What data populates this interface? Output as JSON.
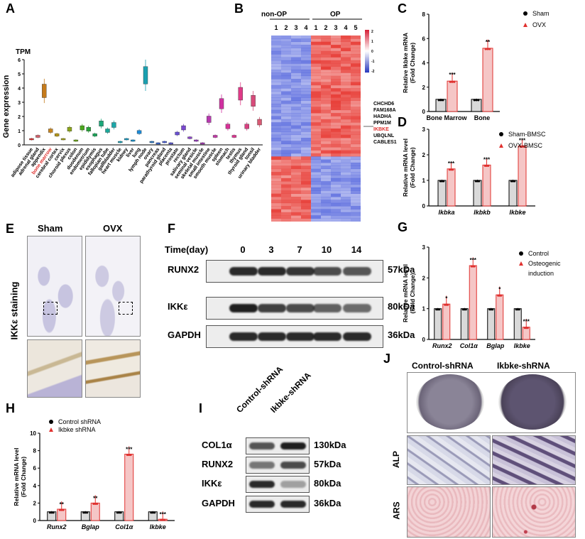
{
  "colors": {
    "red": "#e0312f",
    "pink_bar": "#f5c6c6",
    "gray_bar": "#d9d9d9",
    "heat_red": "#e8413b",
    "heat_blue": "#3b4fd8",
    "brown_stain": "#9b7a4a",
    "purple_stain": "#6a5d9a"
  },
  "panels": {
    "A": {
      "label": "A",
      "tpm_label": "TPM",
      "ylabel": "Gene expression",
      "yticks": [
        "0",
        "1",
        "2",
        "3",
        "4",
        "5",
        "6"
      ],
      "highlight": "bone marrow",
      "tissues": [
        "adipose tissue",
        "adrenal gland",
        "appendix",
        "bone marrow",
        "cerebral cortex",
        "cervix",
        "choroid plexus",
        "colon",
        "duodenum",
        "endometrium",
        "epididymis",
        "esophagus",
        "fallopian tube",
        "gallbladder",
        "heart muscle",
        "kidney",
        "liver",
        "lung",
        "lymph node",
        "ovary",
        "pancreas",
        "parathyroid gland",
        "placenta",
        "prostate",
        "rectum",
        "salivary gland",
        "seminal vesicle",
        "skeletal muscle",
        "small intestine",
        "smooth muscle",
        "spleen",
        "stomach",
        "testis",
        "thymus",
        "thyroid gland",
        "tonsil",
        "urinary bladder"
      ]
    },
    "B": {
      "label": "B",
      "group1": "non-OP",
      "group2": "OP",
      "cols1": [
        "1",
        "2",
        "3",
        "4"
      ],
      "cols2": [
        "1",
        "2",
        "3",
        "4",
        "5"
      ],
      "scale": [
        "2",
        "1",
        "0",
        "-1",
        "-2"
      ],
      "genes": [
        "CHCHD6",
        "FAM168A",
        "HADHA",
        "PPM1M",
        "IKBKE",
        "UBQLNL",
        "CABLES1"
      ],
      "highlight_gene": "IKBKE"
    },
    "C": {
      "label": "C",
      "ylabel": "Relative Ikbke mRNA\n(Fold Change)",
      "ylabel_lines": [
        "Relative ",
        "Ikbke",
        " mRNA",
        "(Fold Change)"
      ],
      "legend": [
        "Sham",
        "OVX"
      ],
      "chart_data": {
        "type": "bar",
        "categories": [
          "Bone Marrow",
          "Bone"
        ],
        "series": [
          {
            "name": "Sham",
            "values": [
              1.0,
              1.0
            ]
          },
          {
            "name": "OVX",
            "values": [
              2.5,
              5.2
            ]
          }
        ],
        "ylim": [
          0,
          8
        ],
        "yticks": [
          0,
          2,
          4,
          6,
          8
        ],
        "significance": [
          "***",
          "**"
        ]
      }
    },
    "D": {
      "label": "D",
      "ylabel_lines": [
        "Relative mRNA level",
        "(Fold Change)"
      ],
      "legend": [
        "Sham-BMSC",
        "OVX-BMSC"
      ],
      "chart_data": {
        "type": "bar",
        "categories": [
          "Ikbka",
          "Ikbkb",
          "Ikbke"
        ],
        "series": [
          {
            "name": "Sham-BMSC",
            "values": [
              1.0,
              1.0,
              1.0
            ]
          },
          {
            "name": "OVX-BMSC",
            "values": [
              1.45,
              1.6,
              2.35
            ]
          }
        ],
        "ylim": [
          0,
          3
        ],
        "yticks": [
          0,
          1,
          2,
          3
        ],
        "significance": [
          "***",
          "***",
          "***"
        ]
      }
    },
    "E": {
      "label": "E",
      "col1": "Sham",
      "col2": "OVX",
      "side": "IKKε staining"
    },
    "F": {
      "label": "F",
      "time_label": "Time(day)",
      "times": [
        "0",
        "3",
        "7",
        "10",
        "14"
      ],
      "rows": [
        {
          "name": "RUNX2",
          "kda": "57kDa"
        },
        {
          "name": "IKKε",
          "kda": "80kDa"
        },
        {
          "name": "GAPDH",
          "kda": "36kDa"
        }
      ]
    },
    "G": {
      "label": "G",
      "ylabel_lines": [
        "Relative mRNA level",
        "(Fold Change)"
      ],
      "legend": [
        "Control",
        "Osteogenic",
        "induction"
      ],
      "chart_data": {
        "type": "bar",
        "categories": [
          "Runx2",
          "Col1α",
          "Bglap",
          "Ikbke"
        ],
        "series": [
          {
            "name": "Control",
            "values": [
              1.0,
              1.0,
              1.0,
              1.0
            ]
          },
          {
            "name": "Osteogenic induction",
            "values": [
              1.15,
              2.4,
              1.45,
              0.4
            ]
          }
        ],
        "ylim": [
          0,
          3
        ],
        "yticks": [
          0,
          1,
          2,
          3
        ],
        "significance": [
          "*",
          "***",
          "*",
          "***"
        ]
      }
    },
    "H": {
      "label": "H",
      "ylabel_lines": [
        "Relative mRNA level",
        "(Fold Change)"
      ],
      "legend": [
        "Control shRNA",
        "Ikbke shRNA"
      ],
      "chart_data": {
        "type": "bar",
        "categories": [
          "Runx2",
          "Bglap",
          "Col1α",
          "Ikbke"
        ],
        "series": [
          {
            "name": "Control shRNA",
            "values": [
              1.0,
              1.0,
              1.0,
              1.0
            ]
          },
          {
            "name": "Ikbke shRNA",
            "values": [
              1.3,
              2.0,
              7.6,
              0.15
            ]
          }
        ],
        "ylim": [
          0,
          10
        ],
        "yticks": [
          0,
          2,
          4,
          6,
          8,
          10
        ],
        "significance": [
          "**",
          "**",
          "***",
          "***"
        ]
      }
    },
    "I": {
      "label": "I",
      "cols": [
        "Control-shRNA",
        "Ikbke-shRNA"
      ],
      "rows": [
        {
          "name": "COL1α",
          "kda": "130kDa"
        },
        {
          "name": "RUNX2",
          "kda": "57kDa"
        },
        {
          "name": "IKKε",
          "kda": "80kDa"
        },
        {
          "name": "GAPDH",
          "kda": "36kDa"
        }
      ]
    },
    "J": {
      "label": "J",
      "col1": "Control-shRNA",
      "col2": "Ikbke-shRNA",
      "row1": "ALP",
      "row2": "ARS"
    }
  }
}
